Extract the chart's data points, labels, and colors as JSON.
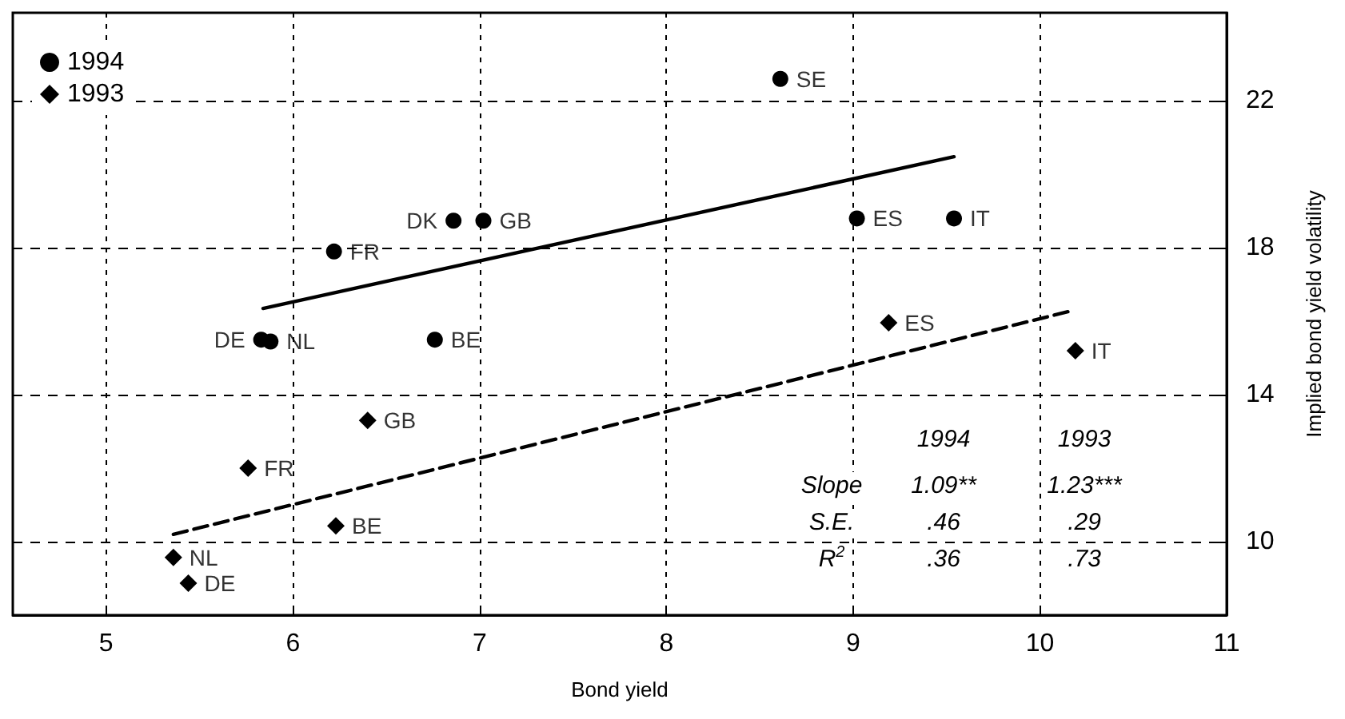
{
  "chart_data": {
    "type": "scatter",
    "xlabel": "Bond yield",
    "ylabel": "Implied bond yield volatility",
    "xlim": [
      4.5,
      11
    ],
    "xticks": [
      5,
      6,
      7,
      8,
      9,
      10,
      11
    ],
    "ylim": [
      8,
      24.4
    ],
    "yticks": [
      10,
      14,
      18,
      22
    ],
    "grid": true,
    "legend": "top left",
    "series": [
      {
        "name": "1994",
        "color": "#000000",
        "marker": "circle",
        "x": [
          8.61,
          6.86,
          7.02,
          6.22,
          5.83,
          5.88,
          6.76,
          9.02,
          9.54
        ],
        "values": [
          22.6,
          18.74,
          18.74,
          17.9,
          15.5,
          15.45,
          15.5,
          18.8,
          18.8
        ]
      },
      {
        "name": "1993",
        "color": "#000000",
        "marker": "diamond",
        "x": [
          9.19,
          10.19,
          6.4,
          5.76,
          6.23,
          5.36,
          5.44
        ],
        "values": [
          15.96,
          15.2,
          13.3,
          12.0,
          10.43,
          9.57,
          8.87
        ]
      },
      {
        "type": "line",
        "color": "#000000",
        "line_style": "solid",
        "marker": "none",
        "x": [
          5.84,
          9.54
        ],
        "values": [
          16.35,
          20.48
        ]
      },
      {
        "type": "line",
        "color": "#000000",
        "line_style": "dashed",
        "marker": "none",
        "x": [
          5.36,
          10.18
        ],
        "values": [
          10.2,
          16.3
        ]
      }
    ],
    "annotations": [
      {
        "text": "SE",
        "x": 8.61,
        "y": 22.6
      },
      {
        "text": "DK",
        "x": 6.86,
        "y": 18.74
      },
      {
        "text": "GB",
        "x": 7.02,
        "y": 18.74
      },
      {
        "text": "FR",
        "x": 6.22,
        "y": 17.9
      },
      {
        "text": "DE",
        "x": 5.83,
        "y": 15.5
      },
      {
        "text": "NL",
        "x": 5.88,
        "y": 15.45
      },
      {
        "text": "BE",
        "x": 6.76,
        "y": 15.5
      },
      {
        "text": "ES",
        "x": 9.02,
        "y": 18.8
      },
      {
        "text": "IT",
        "x": 9.54,
        "y": 18.8
      },
      {
        "text": "ES",
        "x": 9.19,
        "y": 15.96
      },
      {
        "text": "IT",
        "x": 10.19,
        "y": 15.2
      },
      {
        "text": "GB",
        "x": 6.4,
        "y": 13.3
      },
      {
        "text": "FR",
        "x": 5.76,
        "y": 12.0
      },
      {
        "text": "BE",
        "x": 6.23,
        "y": 10.43
      },
      {
        "text": "NL",
        "x": 5.36,
        "y": 9.57
      },
      {
        "text": "DE",
        "x": 5.44,
        "y": 8.87
      },
      "1994",
      "1993",
      "Slope",
      "1.09**",
      "1.23***",
      "S.E.",
      ".46",
      ".29",
      "R$^{2}$",
      ".36",
      ".73"
    ]
  }
}
